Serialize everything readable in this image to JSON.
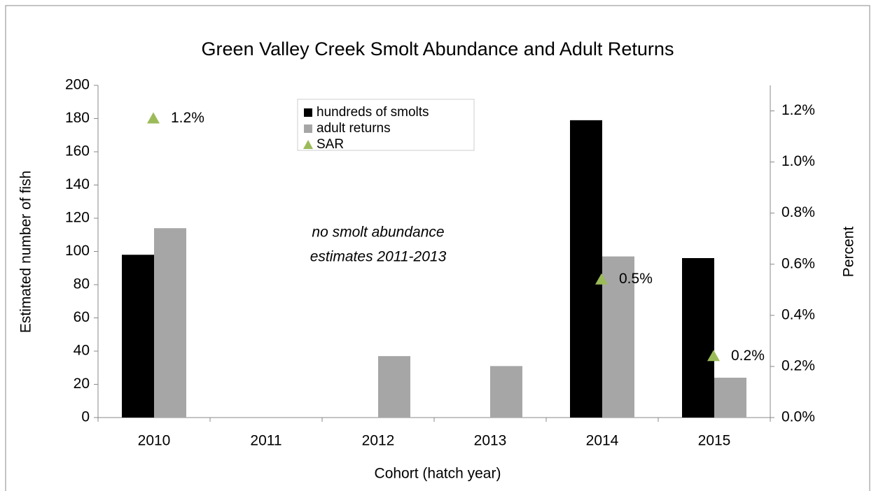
{
  "chart_data": {
    "type": "bar",
    "title": "Green Valley Creek Smolt Abundance and Adult Returns",
    "x_label": "Cohort (hatch year)",
    "y_label": "Estimated number of fish",
    "y2_label": "Percent",
    "categories": [
      "2010",
      "2011",
      "2012",
      "2013",
      "2014",
      "2015"
    ],
    "series": [
      {
        "name": "hundreds of smolts",
        "color": "#000000",
        "values": [
          98,
          null,
          null,
          null,
          179,
          96
        ]
      },
      {
        "name": "adult returns",
        "color": "#a6a6a6",
        "values": [
          114,
          null,
          37,
          31,
          97,
          24
        ]
      },
      {
        "name": "SAR",
        "color": "#9bbb59",
        "type": "scatter",
        "axis": "y2",
        "values": [
          1.17,
          null,
          null,
          null,
          0.54,
          0.24
        ],
        "value_labels": [
          "1.2%",
          null,
          null,
          null,
          "0.5%",
          "0.2%"
        ]
      }
    ],
    "ylim": [
      0,
      200
    ],
    "yticks": [
      0,
      20,
      40,
      60,
      80,
      100,
      120,
      140,
      160,
      180,
      200
    ],
    "y2lim": [
      0,
      1.3
    ],
    "y2ticks": [
      {
        "value": 0,
        "label": "0.0%"
      },
      {
        "value": 0.2,
        "label": "0.2%"
      },
      {
        "value": 0.4,
        "label": "0.4%"
      },
      {
        "value": 0.6,
        "label": "0.6%"
      },
      {
        "value": 0.8,
        "label": "0.8%"
      },
      {
        "value": 1.0,
        "label": "1.0%"
      },
      {
        "value": 1.2,
        "label": "1.2%"
      }
    ],
    "annotation": [
      "no smolt abundance",
      "estimates 2011-2013"
    ],
    "legend": "top"
  }
}
